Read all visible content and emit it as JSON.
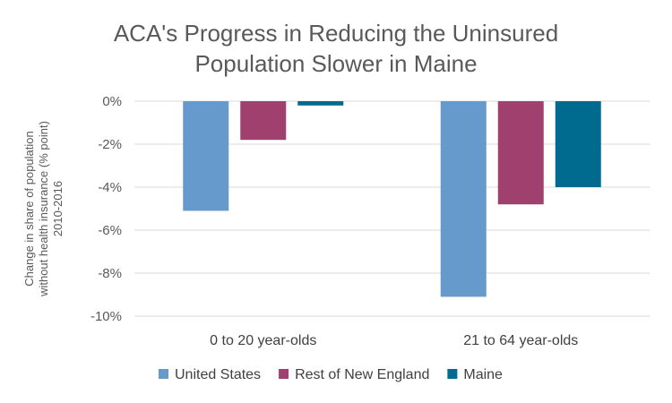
{
  "chart_data": {
    "type": "bar",
    "title_lines": [
      "ACA's Progress in Reducing the Uninsured",
      "Population Slower in Maine"
    ],
    "ylabel_lines": [
      "Change in share of population",
      "without health insurance (% point)",
      "2010-2016"
    ],
    "xlabel": "",
    "categories": [
      "0 to 20 year-olds",
      "21 to 64 year-olds"
    ],
    "series": [
      {
        "name": "United States",
        "color": "#6699CC",
        "values": [
          -5.1,
          -9.1
        ]
      },
      {
        "name": "Rest of New England",
        "color": "#A0406E",
        "values": [
          -1.8,
          -4.8
        ]
      },
      {
        "name": "Maine",
        "color": "#006B8F",
        "values": [
          -0.2,
          -4.0
        ]
      }
    ],
    "ylim": [
      -10,
      0
    ],
    "yticks": [
      0,
      -2,
      -4,
      -6,
      -8,
      -10
    ],
    "ytick_labels": [
      "0%",
      "-2%",
      "-4%",
      "-6%",
      "-8%",
      "-10%"
    ],
    "grid": true,
    "legend": "bottom"
  }
}
